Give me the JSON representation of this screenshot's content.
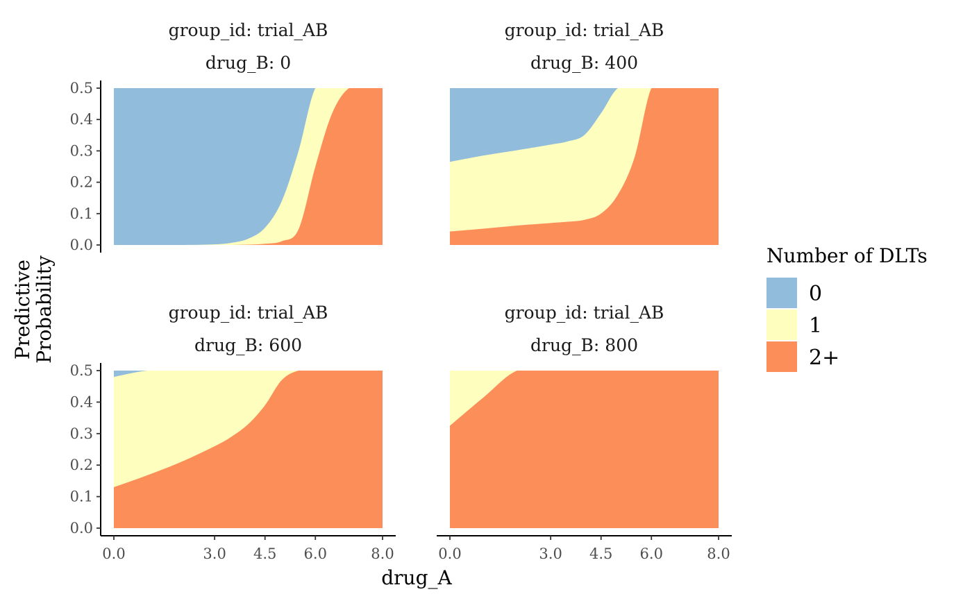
{
  "chart_data": {
    "type": "area",
    "subtype": "stacked-probability",
    "xlabel": "drug_A",
    "ylabel_lines": [
      "Predictive",
      "Probability"
    ],
    "x_ticks": [
      0,
      3,
      4.5,
      6,
      8
    ],
    "x_tick_labels": [
      "0.0",
      "3.0",
      "4.5",
      "6.0",
      "8.0"
    ],
    "y_ticks": [
      0,
      0.1,
      0.2,
      0.3,
      0.4,
      0.5
    ],
    "y_tick_labels": [
      "0.0",
      "0.1",
      "0.2",
      "0.3",
      "0.4",
      "0.5"
    ],
    "xlim": [
      0,
      8
    ],
    "ylim": [
      0,
      0.5
    ],
    "legend": {
      "title": "Number of DLTs",
      "placement": "right",
      "entries": [
        {
          "label": "0",
          "color": "#91bcdb"
        },
        {
          "label": "1",
          "color": "#fefebf"
        },
        {
          "label": "2+",
          "color": "#fc8e59"
        }
      ]
    },
    "panels": [
      {
        "strip_line1": "group_id: trial_AB",
        "strip_line2": "drug_B: 0",
        "x": [
          0,
          1,
          2,
          3,
          3.5,
          4,
          4.5,
          5,
          5.5,
          6,
          6.5,
          7,
          7.5,
          8
        ],
        "cum_2plus": [
          0,
          0,
          0,
          0,
          0,
          0.001,
          0.004,
          0.012,
          0.05,
          0.25,
          0.42,
          0.5,
          0.5,
          0.5
        ],
        "cum_1plus": [
          0,
          0,
          0,
          0.002,
          0.007,
          0.02,
          0.055,
          0.14,
          0.3,
          0.5,
          0.5,
          0.5,
          0.5,
          0.5
        ]
      },
      {
        "strip_line1": "group_id: trial_AB",
        "strip_line2": "drug_B: 400",
        "x": [
          0,
          1,
          2,
          3,
          3.5,
          4,
          4.5,
          5,
          5.5,
          6,
          6.5,
          7,
          7.5,
          8
        ],
        "cum_2plus": [
          0.043,
          0.052,
          0.062,
          0.07,
          0.074,
          0.08,
          0.1,
          0.16,
          0.28,
          0.5,
          0.5,
          0.5,
          0.5,
          0.5
        ],
        "cum_1plus": [
          0.265,
          0.285,
          0.302,
          0.32,
          0.33,
          0.35,
          0.42,
          0.5,
          0.5,
          0.5,
          0.5,
          0.5,
          0.5,
          0.5
        ]
      },
      {
        "strip_line1": "group_id: trial_AB",
        "strip_line2": "drug_B: 600",
        "x": [
          0,
          1,
          2,
          3,
          3.5,
          4,
          4.5,
          5,
          5.5,
          6,
          6.5,
          7,
          7.5,
          8
        ],
        "cum_2plus": [
          0.13,
          0.168,
          0.21,
          0.26,
          0.29,
          0.33,
          0.39,
          0.47,
          0.5,
          0.5,
          0.5,
          0.5,
          0.5,
          0.5
        ],
        "cum_1plus": [
          0.48,
          0.5,
          0.5,
          0.5,
          0.5,
          0.5,
          0.5,
          0.5,
          0.5,
          0.5,
          0.5,
          0.5,
          0.5,
          0.5
        ]
      },
      {
        "strip_line1": "group_id: trial_AB",
        "strip_line2": "drug_B: 800",
        "x": [
          0,
          1,
          2,
          3,
          3.5,
          4,
          4.5,
          5,
          5.5,
          6,
          6.5,
          7,
          7.5,
          8
        ],
        "cum_2plus": [
          0.325,
          0.415,
          0.5,
          0.5,
          0.5,
          0.5,
          0.5,
          0.5,
          0.5,
          0.5,
          0.5,
          0.5,
          0.5,
          0.5
        ],
        "cum_1plus": [
          0.5,
          0.5,
          0.5,
          0.5,
          0.5,
          0.5,
          0.5,
          0.5,
          0.5,
          0.5,
          0.5,
          0.5,
          0.5,
          0.5
        ]
      }
    ]
  }
}
